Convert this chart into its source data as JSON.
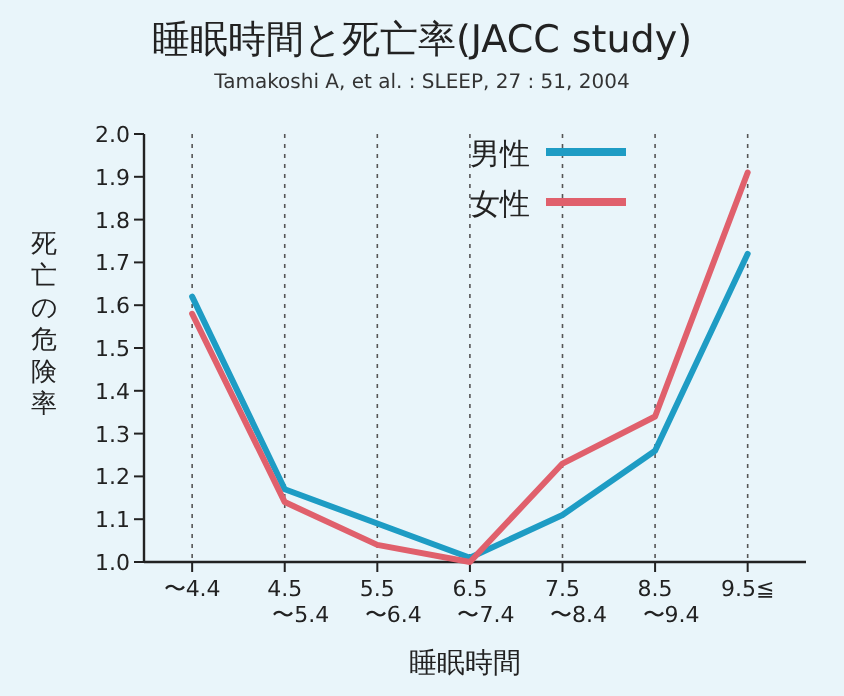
{
  "chart_data": {
    "type": "line",
    "title": "睡眠時間と死亡率(JACC study)",
    "subtitle": "Tamakoshi A, et al. : SLEEP, 27 : 51, 2004",
    "xlabel": "睡眠時間",
    "ylabel": "死亡の危険率",
    "categories": [
      "〜4.4",
      "4.5\n〜5.4",
      "5.5\n〜6.4",
      "6.5\n〜7.4",
      "7.5\n〜8.4",
      "8.5\n〜9.4",
      "9.5≦"
    ],
    "series": [
      {
        "name": "男性",
        "color": "#1e9cc4",
        "values": [
          1.62,
          1.17,
          1.09,
          1.01,
          1.11,
          1.26,
          1.72
        ]
      },
      {
        "name": "女性",
        "color": "#e0606c",
        "values": [
          1.58,
          1.14,
          1.04,
          1.0,
          1.23,
          1.34,
          1.91
        ]
      }
    ],
    "ylim": [
      1.0,
      2.0
    ],
    "yticks": [
      {
        "value": 1.0,
        "label": "1.0"
      },
      1.1,
      1.2,
      1.3,
      1.4,
      1.5,
      1.6,
      1.7,
      1.8,
      1.9,
      {
        "value": 2.0,
        "label": "2.0"
      }
    ],
    "grid": "x",
    "legend": "top right",
    "marker": "none",
    "line_style": "solid"
  }
}
